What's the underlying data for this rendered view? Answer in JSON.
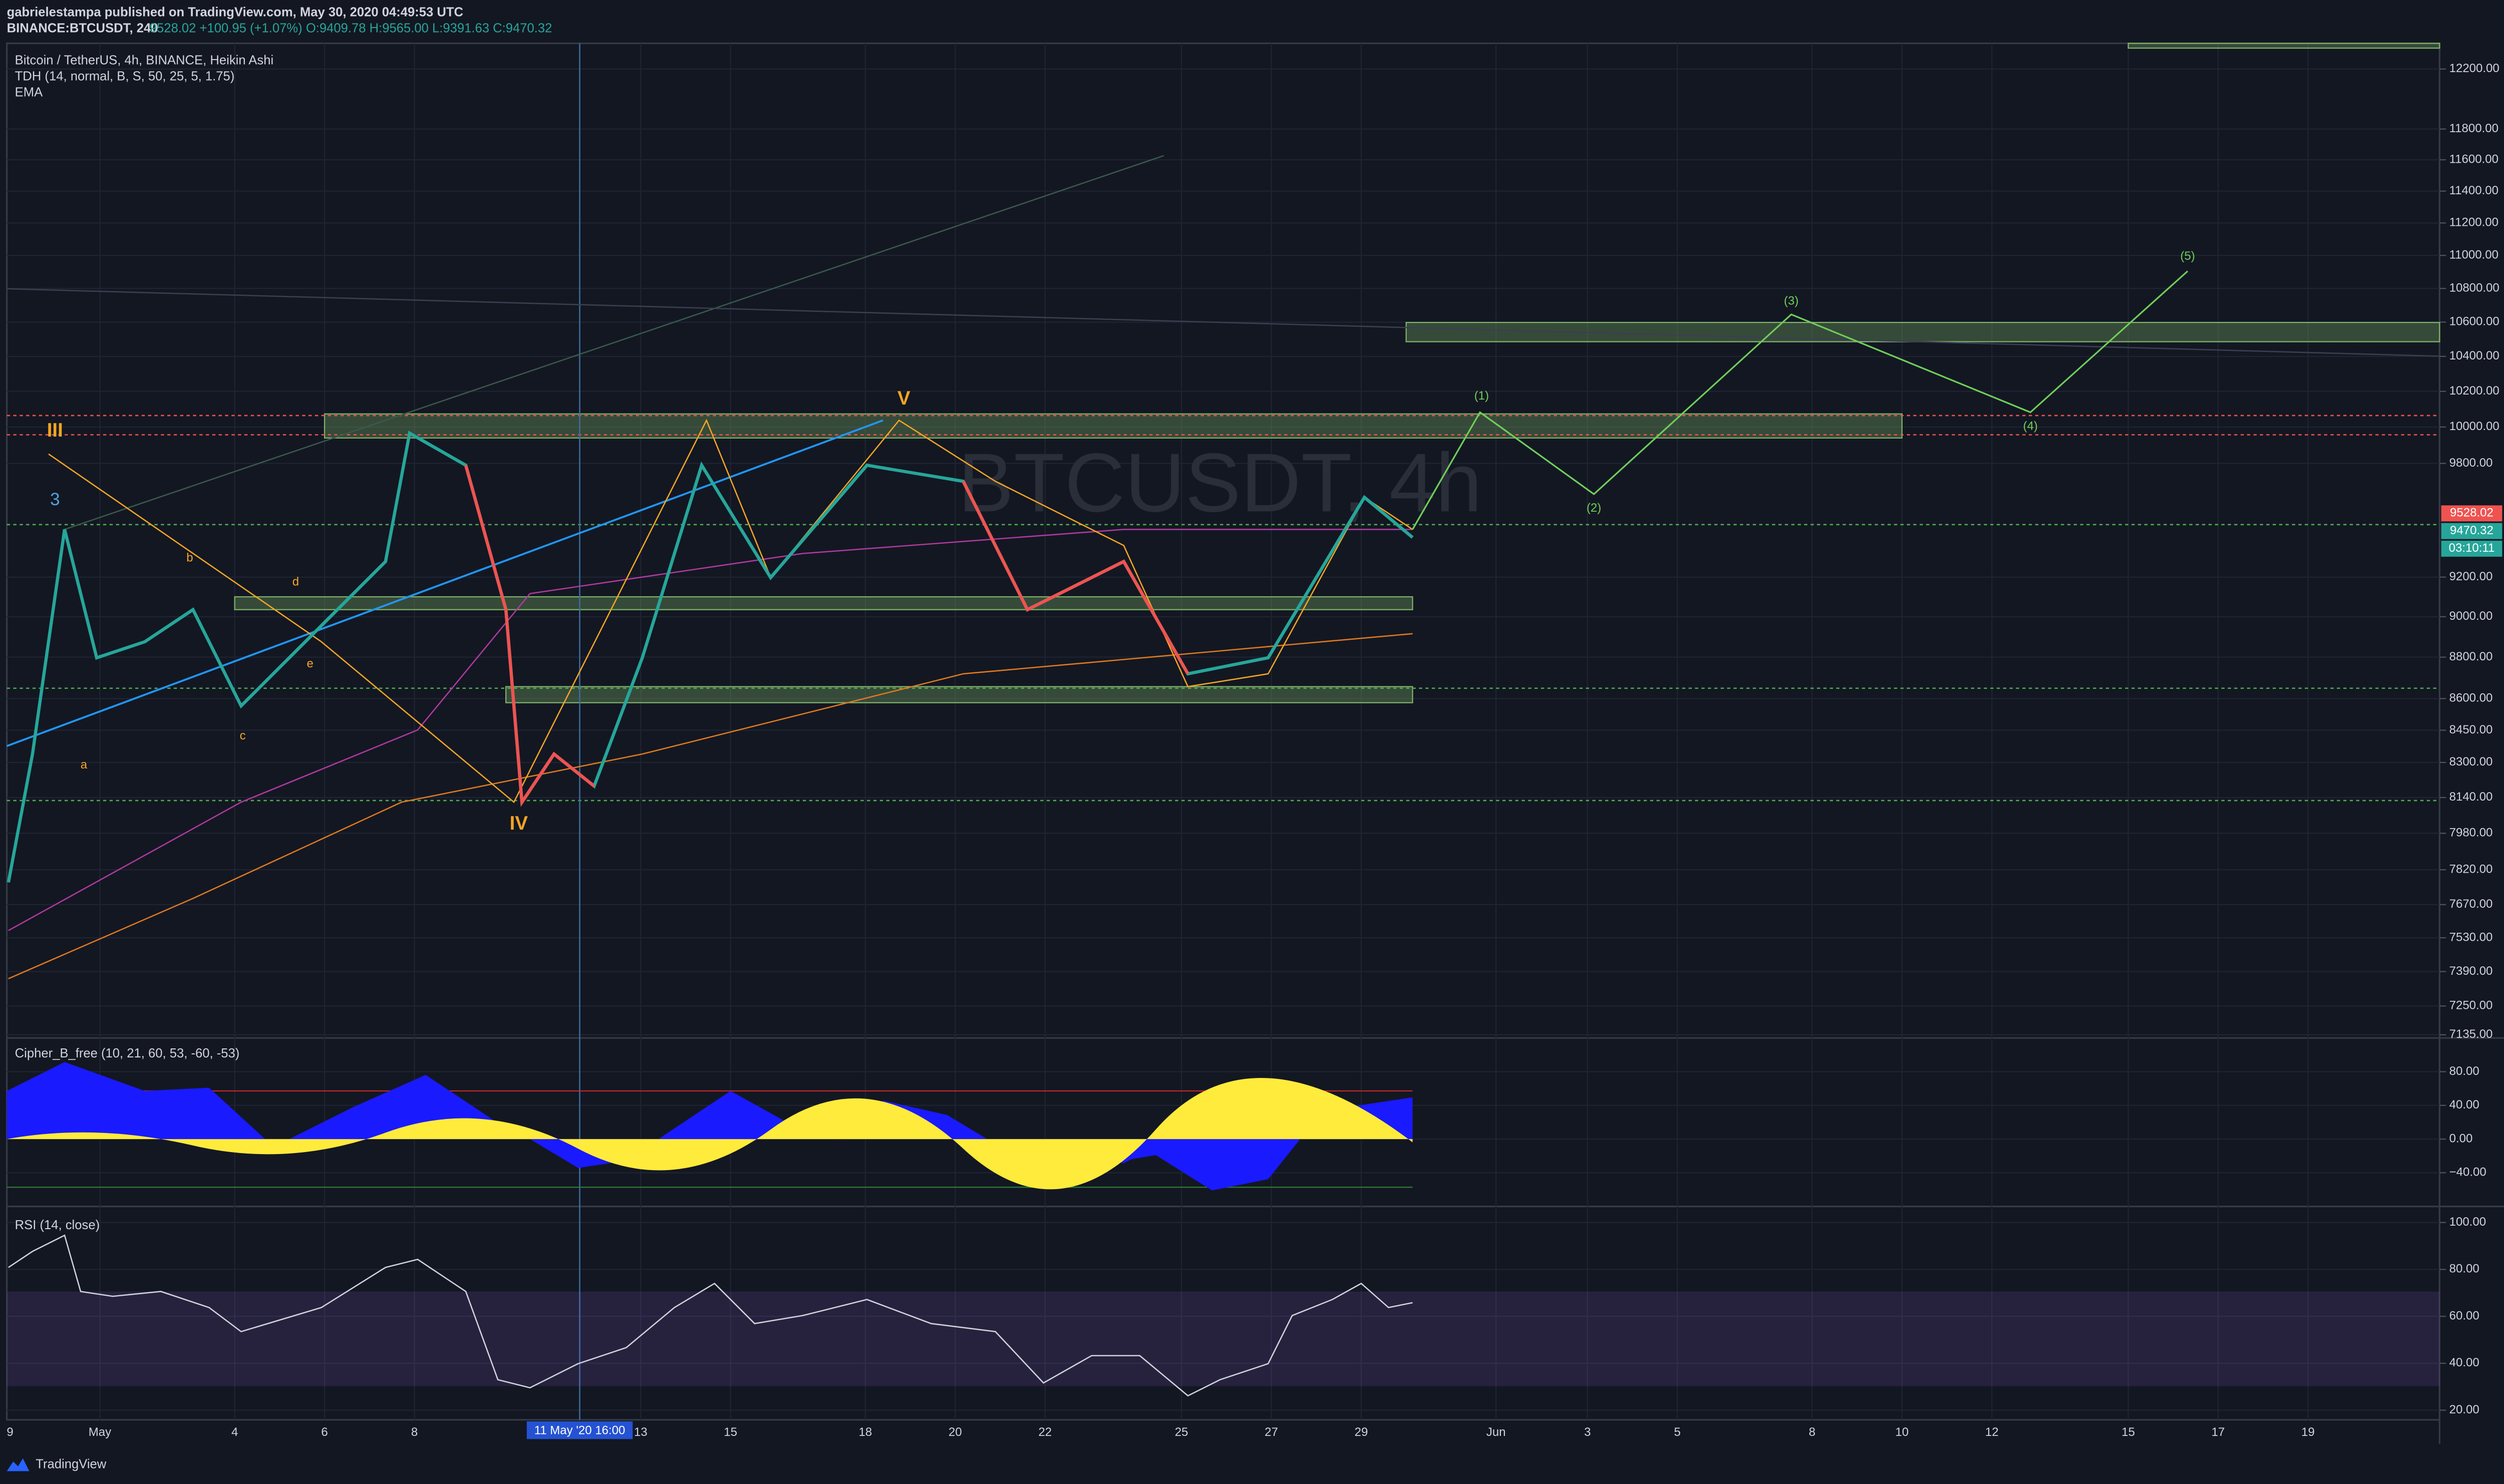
{
  "header": {
    "author_line": "gabrielestampa published on TradingView.com, May 30, 2020 04:49:53 UTC",
    "symbol": "BINANCE:BTCUSDT, 240",
    "quote": "9528.02 +100.95 (+1.07%) O:9409.78 H:9565.00 L:9391.63 C:9470.32"
  },
  "legend": [
    "Bitcoin / TetherUS, 4h, BINANCE, Heikin Ashi",
    "TDH (14, normal, B, S, 50, 25, 5, 1.75)",
    "EMA"
  ],
  "watermark": "BTCUSDT, 4h",
  "price_axis": {
    "ticks": [
      {
        "value": 12200,
        "label": "12200.00"
      },
      {
        "value": 11800,
        "label": "11800.00"
      },
      {
        "value": 11600,
        "label": "11600.00"
      },
      {
        "value": 11400,
        "label": "11400.00"
      },
      {
        "value": 11200,
        "label": "11200.00"
      },
      {
        "value": 11000,
        "label": "11000.00"
      },
      {
        "value": 10800,
        "label": "10800.00"
      },
      {
        "value": 10600,
        "label": "10600.00"
      },
      {
        "value": 10400,
        "label": "10400.00"
      },
      {
        "value": 10200,
        "label": "10200.00"
      },
      {
        "value": 10000,
        "label": "10000.00"
      },
      {
        "value": 9800,
        "label": "9800.00"
      },
      {
        "value": 9200,
        "label": "9200.00"
      },
      {
        "value": 9000,
        "label": "9000.00"
      },
      {
        "value": 8800,
        "label": "8800.00"
      },
      {
        "value": 8600,
        "label": "8600.00"
      },
      {
        "value": 8450,
        "label": "8450.00"
      },
      {
        "value": 8300,
        "label": "8300.00"
      },
      {
        "value": 8140,
        "label": "8140.00"
      },
      {
        "value": 7980,
        "label": "7980.00"
      },
      {
        "value": 7820,
        "label": "7820.00"
      },
      {
        "value": 7670,
        "label": "7670.00"
      },
      {
        "value": 7530,
        "label": "7530.00"
      },
      {
        "value": 7390,
        "label": "7390.00"
      },
      {
        "value": 7250,
        "label": "7250.00"
      },
      {
        "value": 7135,
        "label": "7135.00"
      }
    ],
    "last_price": "9528.02",
    "close_price": "9470.32",
    "countdown": "03:10:11"
  },
  "cipher": {
    "title": "Cipher_B_free (10, 21, 60, 53, -60, -53)",
    "ticks": [
      {
        "value": 80,
        "label": "80.00"
      },
      {
        "value": 40,
        "label": "40.00"
      },
      {
        "value": 0,
        "label": "0.00"
      },
      {
        "value": -40,
        "label": "−40.00"
      }
    ]
  },
  "rsi": {
    "title": "RSI (14, close)",
    "ticks": [
      {
        "value": 100,
        "label": "100.00"
      },
      {
        "value": 80,
        "label": "80.00"
      },
      {
        "value": 60,
        "label": "60.00"
      },
      {
        "value": 40,
        "label": "40.00"
      },
      {
        "value": 20,
        "label": "20.00"
      }
    ]
  },
  "time_axis": [
    "9",
    "May",
    "4",
    "6",
    "8",
    "13",
    "15",
    "18",
    "20",
    "22",
    "25",
    "27",
    "29",
    "Jun",
    "3",
    "5",
    "8",
    "10",
    "12",
    "15",
    "17",
    "19"
  ],
  "crosshair_time": "11 May '20   16:00",
  "annotations": {
    "wave_III": "III",
    "wave_IV": "IV",
    "wave_V": "V",
    "wave_3": "3",
    "a": "a",
    "b": "b",
    "c": "c",
    "d": "d",
    "e": "e",
    "p1": "(1)",
    "p2": "(2)",
    "p3": "(3)",
    "p4": "(4)",
    "p5": "(5)"
  },
  "footer": "TradingView"
}
